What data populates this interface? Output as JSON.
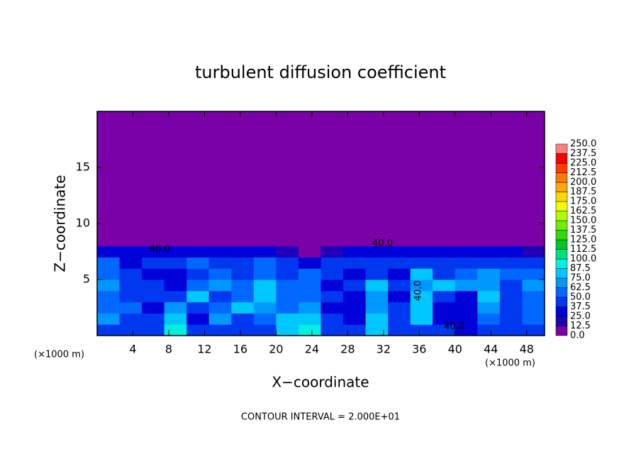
{
  "chart_data": {
    "type": "contour",
    "title": "turbulent diffusion coefficient",
    "x_label": "X−coordinate",
    "y_label": "Z−coordinate",
    "x_unit_left": "(×1000 m)",
    "x_unit_right": "(×1000 m)",
    "footer": "CONTOUR INTERVAL = 2.000E+01",
    "xlim": [
      0,
      50
    ],
    "ylim": [
      0,
      20
    ],
    "xticks": [
      4,
      8,
      12,
      16,
      20,
      24,
      28,
      32,
      36,
      40,
      44,
      48
    ],
    "yticks": [
      5,
      10,
      15
    ],
    "x_edges": [
      0,
      2.5,
      5,
      7.5,
      10,
      12.5,
      15,
      17.5,
      20,
      22.5,
      25,
      27.5,
      30,
      32.5,
      35,
      37.5,
      40,
      42.5,
      45,
      47.5,
      50
    ],
    "y_edges": [
      0,
      1,
      2,
      3,
      4,
      5,
      6,
      7,
      8,
      9,
      10,
      20
    ],
    "z": [
      [
        45,
        40,
        45,
        90,
        40,
        45,
        40,
        40,
        85,
        90,
        45,
        40,
        80,
        40,
        45,
        40,
        35,
        45,
        40,
        45
      ],
      [
        70,
        45,
        40,
        80,
        35,
        70,
        45,
        60,
        75,
        85,
        40,
        35,
        75,
        40,
        75,
        35,
        30,
        60,
        45,
        50
      ],
      [
        55,
        50,
        35,
        70,
        40,
        60,
        75,
        70,
        60,
        70,
        35,
        30,
        70,
        40,
        80,
        35,
        30,
        70,
        40,
        55
      ],
      [
        60,
        40,
        45,
        45,
        75,
        45,
        60,
        80,
        55,
        60,
        40,
        35,
        70,
        35,
        80,
        40,
        35,
        75,
        45,
        60
      ],
      [
        70,
        45,
        40,
        35,
        50,
        70,
        55,
        75,
        50,
        60,
        35,
        40,
        75,
        40,
        70,
        75,
        70,
        70,
        45,
        65
      ],
      [
        60,
        40,
        35,
        30,
        45,
        60,
        40,
        60,
        40,
        50,
        40,
        35,
        40,
        30,
        80,
        45,
        50,
        65,
        50,
        55
      ],
      [
        50,
        35,
        40,
        40,
        50,
        40,
        45,
        55,
        40,
        35,
        40,
        45,
        40,
        45,
        45,
        40,
        40,
        45,
        40,
        45
      ],
      [
        30,
        35,
        30,
        30,
        35,
        30,
        30,
        25,
        15,
        10,
        20,
        30,
        30,
        35,
        30,
        30,
        25,
        25,
        25,
        20
      ],
      [
        0,
        0,
        0,
        0,
        0,
        0,
        0,
        0,
        0,
        0,
        0,
        0,
        5,
        0,
        0,
        0,
        0,
        0,
        0,
        0
      ],
      [
        0,
        0,
        0,
        0,
        0,
        0,
        0,
        0,
        0,
        0,
        0,
        0,
        0,
        0,
        0,
        0,
        0,
        0,
        0,
        0
      ],
      [
        0,
        0,
        0,
        0,
        0,
        0,
        0,
        0,
        0,
        0,
        0,
        0,
        0,
        0,
        0,
        0,
        0,
        0,
        0,
        0
      ]
    ],
    "levels": [
      {
        "value": 0,
        "label": "0.0"
      },
      {
        "value": 12.5,
        "label": "12.5"
      },
      {
        "value": 25,
        "label": "25.0"
      },
      {
        "value": 37.5,
        "label": "37.5"
      },
      {
        "value": 50,
        "label": "50.0"
      },
      {
        "value": 62.5,
        "label": "62.5"
      },
      {
        "value": 75,
        "label": "75.0"
      },
      {
        "value": 87.5,
        "label": "87.5"
      },
      {
        "value": 100,
        "label": "100.0"
      },
      {
        "value": 112.5,
        "label": "112.5"
      },
      {
        "value": 125,
        "label": "125.0"
      },
      {
        "value": 137.5,
        "label": "137.5"
      },
      {
        "value": 150,
        "label": "150.0"
      },
      {
        "value": 162.5,
        "label": "162.5"
      },
      {
        "value": 175,
        "label": "175.0"
      },
      {
        "value": 187.5,
        "label": "187.5"
      },
      {
        "value": 200,
        "label": "200.0"
      },
      {
        "value": 212.5,
        "label": "212.5"
      },
      {
        "value": 225,
        "label": "225.0"
      },
      {
        "value": 237.5,
        "label": "237.5"
      },
      {
        "value": 250,
        "label": "250.0"
      }
    ],
    "colors": [
      "#7a00a8",
      "#2000b8",
      "#0000d8",
      "#0038f0",
      "#0068ff",
      "#0098ff",
      "#00c8ff",
      "#00f0e0",
      "#00e080",
      "#00c828",
      "#30dc00",
      "#70f000",
      "#b0ff00",
      "#f0ff00",
      "#ffd800",
      "#ffa800",
      "#ff7800",
      "#ff3c00",
      "#ff0000",
      "#ff8080"
    ],
    "annotations": [
      {
        "value": 40,
        "label": "40.0",
        "x": 7.0,
        "y": 7.7,
        "rotate": 0
      },
      {
        "value": 40,
        "label": "40.0",
        "x": 31.9,
        "y": 8.2,
        "rotate": 0
      },
      {
        "value": 40,
        "label": "40.0",
        "x": 35.9,
        "y": 4.0,
        "rotate": -90
      },
      {
        "value": 40,
        "label": "40.0",
        "x": 39.9,
        "y": 0.8,
        "rotate": 0
      }
    ]
  }
}
